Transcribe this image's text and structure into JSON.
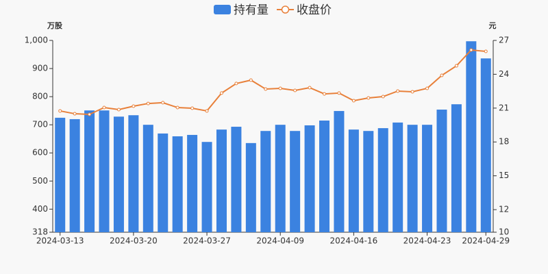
{
  "chart_data": {
    "type": "combo",
    "ylabel": "万股",
    "y2label": "元",
    "categories": [
      "2024-03-13",
      null,
      null,
      null,
      null,
      "2024-03-20",
      null,
      null,
      null,
      null,
      "2024-03-27",
      null,
      null,
      null,
      null,
      "2024-04-09",
      null,
      null,
      null,
      null,
      "2024-04-16",
      null,
      null,
      null,
      null,
      "2024-04-23",
      null,
      null,
      null,
      "2024-04-29"
    ],
    "series": [
      {
        "name": "持有量",
        "type": "bar",
        "color": "#3b82e0",
        "values": [
          725,
          720,
          751,
          751,
          729,
          734,
          700,
          669,
          659,
          664,
          639,
          683,
          693,
          635,
          678,
          700,
          678,
          698,
          715,
          749,
          683,
          678,
          688,
          708,
          700,
          700,
          754,
          773,
          997,
          936
        ]
      },
      {
        "name": "收盘价",
        "type": "line",
        "axis": "y2",
        "color": "#e8803a",
        "values": [
          20.75,
          20.5,
          20.44,
          21.05,
          20.87,
          21.17,
          21.41,
          21.48,
          21.05,
          20.99,
          20.75,
          22.33,
          23.18,
          23.48,
          22.69,
          22.75,
          22.57,
          22.81,
          22.26,
          22.33,
          21.66,
          21.9,
          22.02,
          22.51,
          22.45,
          22.75,
          23.9,
          24.75,
          26.15,
          26.03
        ]
      }
    ],
    "ylim": [
      318,
      1000
    ],
    "yticks": [
      318,
      400,
      500,
      600,
      700,
      800,
      900,
      {
        "value": 1000,
        "label": "1,000"
      }
    ],
    "y2lim": [
      10,
      27
    ],
    "y2ticks": [
      10,
      12,
      15,
      18,
      21,
      24,
      27
    ],
    "legend": "top"
  }
}
